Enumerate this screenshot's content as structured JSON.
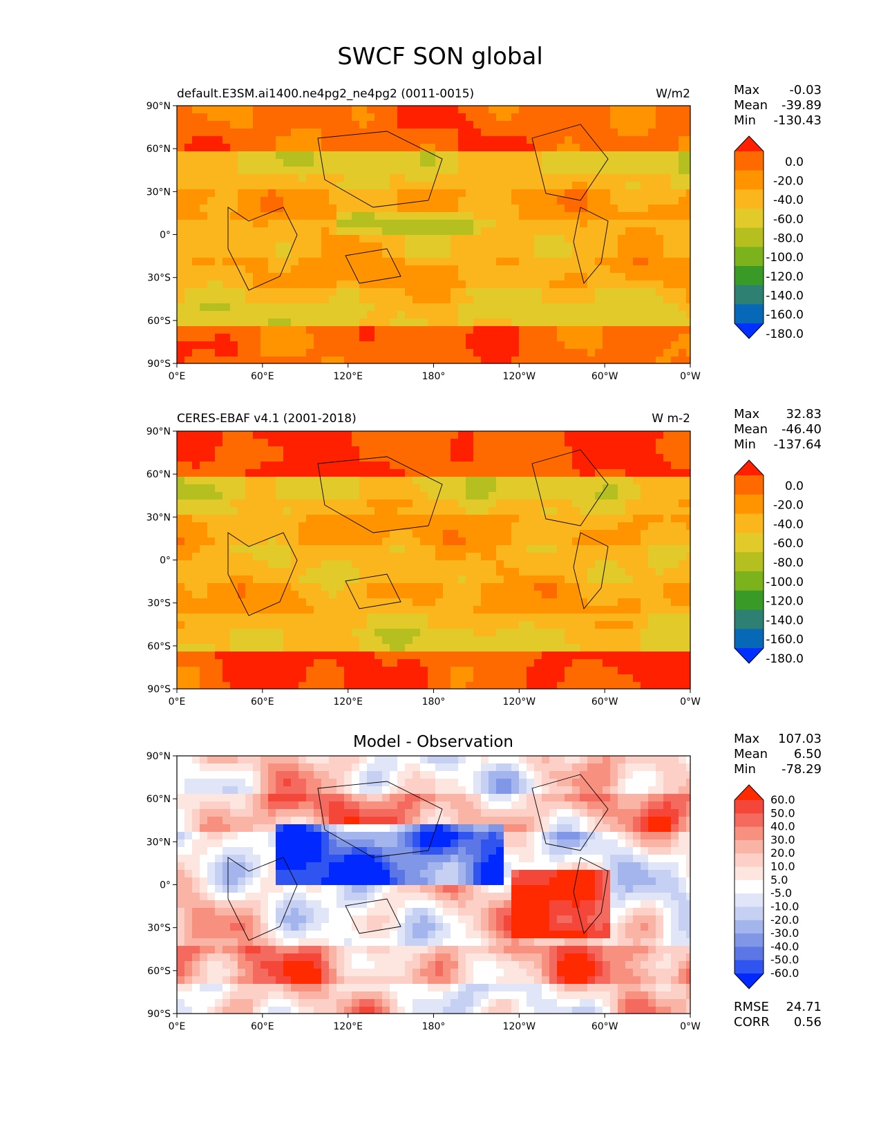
{
  "figure": {
    "title": "SWCF SON global"
  },
  "axes": {
    "lon_ticks": [
      "0°E",
      "60°E",
      "120°E",
      "180°",
      "120°W",
      "60°W",
      "0°W"
    ],
    "lat_ticks": [
      "90°N",
      "60°N",
      "30°N",
      "0°",
      "30°S",
      "60°S",
      "90°S"
    ]
  },
  "chart_data": [
    {
      "type": "heatmap",
      "title": "default.E3SM.ai1400.ne4pg2_ne4pg2 (0011-0015)",
      "units": "W/m2",
      "stats": {
        "max_label": "Max",
        "max": "-0.03",
        "mean_label": "Mean",
        "mean": "-39.89",
        "min_label": "Min",
        "min": "-130.43"
      },
      "colorbar": {
        "labels": [
          "0.0",
          "-20.0",
          "-40.0",
          "-60.0",
          "-80.0",
          "-100.0",
          "-120.0",
          "-140.0",
          "-160.0",
          "-180.0"
        ],
        "colors": [
          "#ff2000",
          "#ff6a00",
          "#ff9400",
          "#fcb61d",
          "#e2ca2a",
          "#b5c020",
          "#7cb21c",
          "#3a9a28",
          "#2e8072",
          "#0868b8",
          "#0030ff"
        ]
      }
    },
    {
      "type": "heatmap",
      "title": "CERES-EBAF v4.1 (2001-2018)",
      "units": "W m-2",
      "stats": {
        "max_label": "Max",
        "max": "32.83",
        "mean_label": "Mean",
        "mean": "-46.40",
        "min_label": "Min",
        "min": "-137.64"
      },
      "colorbar": {
        "labels": [
          "0.0",
          "-20.0",
          "-40.0",
          "-60.0",
          "-80.0",
          "-100.0",
          "-120.0",
          "-140.0",
          "-160.0",
          "-180.0"
        ],
        "colors": [
          "#ff2000",
          "#ff6a00",
          "#ff9400",
          "#fcb61d",
          "#e2ca2a",
          "#b5c020",
          "#7cb21c",
          "#3a9a28",
          "#2e8072",
          "#0868b8",
          "#0030ff"
        ]
      }
    },
    {
      "type": "heatmap",
      "title": "Model - Observation",
      "units": "",
      "stats": {
        "max_label": "Max",
        "max": "107.03",
        "mean_label": "Mean",
        "mean": "6.50",
        "min_label": "Min",
        "min": "-78.29"
      },
      "metrics": {
        "rmse_label": "RMSE",
        "rmse": "24.71",
        "corr_label": "CORR",
        "corr": "0.56"
      },
      "colorbar": {
        "labels": [
          "60.0",
          "50.0",
          "40.0",
          "30.0",
          "20.0",
          "10.0",
          "5.0",
          "-5.0",
          "-10.0",
          "-20.0",
          "-30.0",
          "-40.0",
          "-50.0",
          "-60.0"
        ],
        "colors": [
          "#ff2a00",
          "#f4473a",
          "#f56a5e",
          "#f8907f",
          "#fab4a6",
          "#fcd0c6",
          "#fde6e0",
          "#ffffff",
          "#e0e6f8",
          "#c6d0f2",
          "#a4b4ec",
          "#8096e6",
          "#5c76e6",
          "#3054f0",
          "#0028ff"
        ]
      }
    }
  ]
}
